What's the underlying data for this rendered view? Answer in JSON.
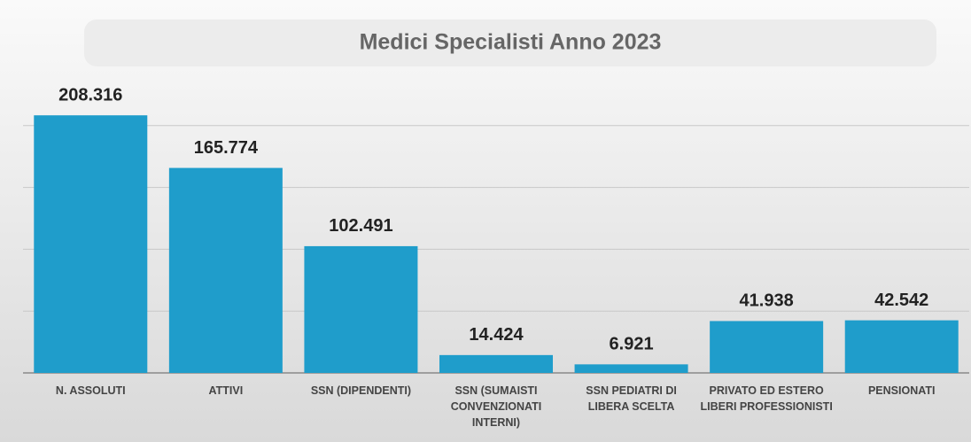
{
  "chart_data": {
    "type": "bar",
    "title": "Medici Specialisti Anno 2023",
    "categories": [
      "N. ASSOLUTI",
      "ATTIVI",
      "SSN (DIPENDENTI)",
      "SSN (SUMAISTI CONVENZIONATI INTERNI)",
      "SSN PEDIATRI DI LIBERA SCELTA",
      "PRIVATO ED ESTERO LIBERI PROFESSIONISTI",
      "PENSIONATI"
    ],
    "values": [
      208316,
      165774,
      102491,
      14424,
      6921,
      41938,
      42542
    ],
    "value_labels": [
      "208.316",
      "165.774",
      "102.491",
      "14.424",
      "6.921",
      "41.938",
      "42.542"
    ],
    "color": "#1f9dcb",
    "ylim": [
      0,
      250000
    ],
    "yticks": [
      0,
      50000,
      100000,
      150000,
      200000
    ],
    "grid": true
  }
}
